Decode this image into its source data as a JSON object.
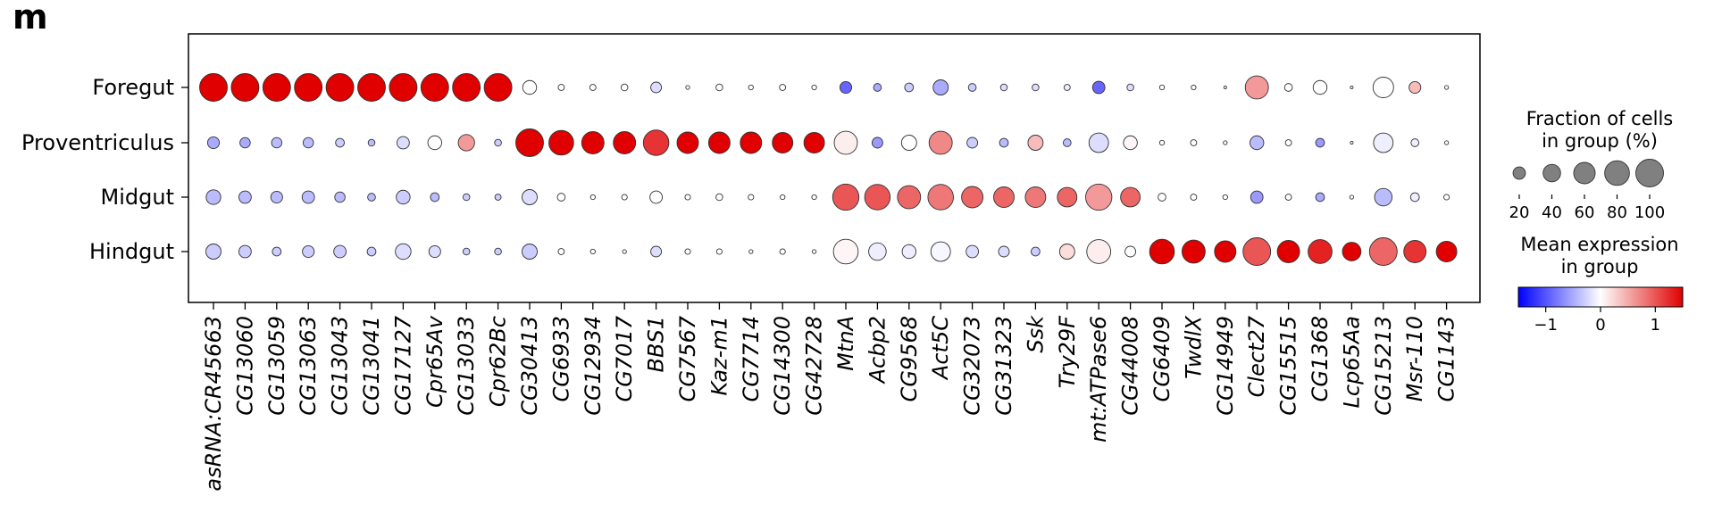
{
  "panel_label": "m",
  "chart_data": {
    "type": "dotplot",
    "rows": [
      "Foregut",
      "Proventriculus",
      "Midgut",
      "Hindgut"
    ],
    "columns": [
      "asRNA:CR45663",
      "CG13060",
      "CG13059",
      "CG13063",
      "CG13043",
      "CG13041",
      "CG17127",
      "Cpr65Av",
      "CG13033",
      "Cpr62Bc",
      "CG30413",
      "CG6933",
      "CG12934",
      "CG7017",
      "BBS1",
      "CG7567",
      "Kaz-m1",
      "CG7714",
      "CG14300",
      "CG42728",
      "MtnA",
      "Acbp2",
      "CG9568",
      "Act5C",
      "CG32073",
      "CG31323",
      "Ssk",
      "Try29F",
      "mt:ATPase6",
      "CG44008",
      "CG6409",
      "TwdlX",
      "CG14949",
      "Clect27",
      "CG15515",
      "CG1368",
      "Lcp65Aa",
      "CG15213",
      "Msr-110",
      "CG1143"
    ],
    "fraction_percent": [
      [
        100,
        100,
        100,
        100,
        100,
        100,
        100,
        100,
        100,
        100,
        25,
        5,
        5,
        6,
        15,
        2,
        6,
        3,
        5,
        3,
        18,
        8,
        10,
        30,
        8,
        6,
        6,
        5,
        20,
        6,
        3,
        3,
        1,
        70,
        8,
        25,
        1,
        55,
        18,
        2
      ],
      [
        18,
        14,
        14,
        14,
        10,
        6,
        20,
        25,
        35,
        6,
        100,
        80,
        65,
        65,
        85,
        60,
        60,
        60,
        55,
        55,
        70,
        15,
        30,
        70,
        15,
        10,
        30,
        8,
        50,
        25,
        3,
        5,
        2,
        25,
        5,
        10,
        1,
        50,
        8,
        2
      ],
      [
        28,
        20,
        18,
        20,
        14,
        8,
        25,
        10,
        6,
        5,
        30,
        8,
        3,
        4,
        20,
        4,
        6,
        4,
        3,
        3,
        90,
        85,
        70,
        85,
        60,
        55,
        55,
        50,
        90,
        50,
        8,
        5,
        3,
        20,
        5,
        10,
        2,
        40,
        10,
        4
      ],
      [
        30,
        20,
        10,
        18,
        20,
        10,
        32,
        18,
        6,
        6,
        30,
        5,
        3,
        2,
        15,
        4,
        4,
        2,
        4,
        2,
        80,
        40,
        25,
        50,
        20,
        15,
        10,
        30,
        75,
        15,
        80,
        70,
        60,
        100,
        65,
        75,
        45,
        100,
        65,
        55
      ]
    ],
    "mean_expression": [
      [
        1.5,
        1.5,
        1.5,
        1.5,
        1.5,
        1.5,
        1.5,
        1.5,
        1.5,
        1.5,
        0,
        0,
        0,
        0,
        -0.2,
        0,
        0,
        0,
        0,
        0,
        -0.9,
        -0.5,
        -0.3,
        -0.5,
        -0.3,
        -0.2,
        -0.2,
        -0.1,
        -0.9,
        -0.2,
        0,
        0,
        0,
        0.6,
        0,
        0,
        0,
        0,
        0.4,
        0
      ],
      [
        -0.5,
        -0.5,
        -0.4,
        -0.4,
        -0.3,
        -0.4,
        -0.2,
        0,
        0.6,
        -0.3,
        1.5,
        1.5,
        1.5,
        1.5,
        1.2,
        1.5,
        1.5,
        1.5,
        1.5,
        1.5,
        0.1,
        -0.6,
        0,
        0.7,
        -0.3,
        -0.4,
        0.4,
        -0.4,
        -0.2,
        0.05,
        0,
        0,
        0,
        -0.4,
        0,
        -0.6,
        0,
        -0.1,
        -0.1,
        0
      ],
      [
        -0.4,
        -0.4,
        -0.4,
        -0.4,
        -0.4,
        -0.4,
        -0.3,
        -0.4,
        -0.3,
        -0.3,
        -0.2,
        0,
        0,
        0,
        0,
        0,
        0,
        0,
        0,
        0,
        1.0,
        1.0,
        0.9,
        0.8,
        0.9,
        0.9,
        0.8,
        0.9,
        0.6,
        0.9,
        0,
        0,
        0,
        -0.6,
        0,
        -0.5,
        0,
        -0.4,
        -0.1,
        0
      ],
      [
        -0.3,
        -0.3,
        -0.3,
        -0.3,
        -0.3,
        -0.3,
        -0.2,
        -0.2,
        -0.3,
        -0.3,
        -0.3,
        0,
        0,
        0,
        -0.2,
        0,
        0,
        0,
        0,
        0,
        0.05,
        -0.1,
        -0.1,
        -0.05,
        -0.2,
        -0.2,
        -0.3,
        0.2,
        0.1,
        0,
        1.5,
        1.5,
        1.5,
        1.0,
        1.5,
        1.3,
        1.5,
        0.9,
        1.2,
        1.5
      ]
    ],
    "legend": {
      "size_title": "Fraction of cells\nin group (%)",
      "size_ticks": [
        20,
        40,
        60,
        80,
        100
      ],
      "color_title": "Mean expression\nin group",
      "color_ticks": [
        -1,
        0,
        1
      ],
      "color_range": [
        -1.5,
        1.5
      ],
      "colormap": "bwr"
    }
  },
  "colors": {
    "low": "#0000ff",
    "mid": "#ffffff",
    "high": "#e00000",
    "axis": "#000000",
    "dot_edge": "#333333"
  }
}
